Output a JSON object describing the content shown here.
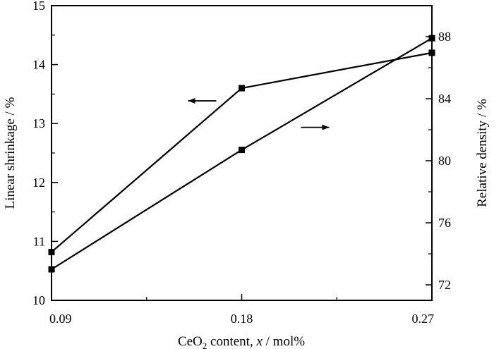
{
  "chart_data": {
    "type": "line",
    "x": [
      0.09,
      0.18,
      0.27
    ],
    "x_tick_labels": [
      "0.09",
      "0.18",
      "0.27"
    ],
    "xlim": [
      0.09,
      0.27
    ],
    "xlabel": {
      "prefix": "CeO",
      "subscript": "2",
      "middle": " content, ",
      "italic": "x",
      "suffix": " / mol%"
    },
    "ylabel_left": "Linear shrinkage / %",
    "ylabel_right": "Relative density / %",
    "ylim_left": [
      10,
      15
    ],
    "ylim_right": [
      71,
      90
    ],
    "y_ticks_left": [
      10,
      11,
      12,
      13,
      14,
      15
    ],
    "y_ticks_right": [
      72,
      76,
      80,
      84,
      88
    ],
    "grid": false,
    "series": [
      {
        "axis": "left",
        "values": [
          10.82,
          13.6,
          14.2
        ],
        "marker": "square",
        "color": "#000000",
        "indicator_arrow": "left"
      },
      {
        "axis": "right",
        "values": [
          73.0,
          80.7,
          87.9
        ],
        "marker": "square",
        "color": "#000000",
        "indicator_arrow": "right"
      }
    ]
  }
}
